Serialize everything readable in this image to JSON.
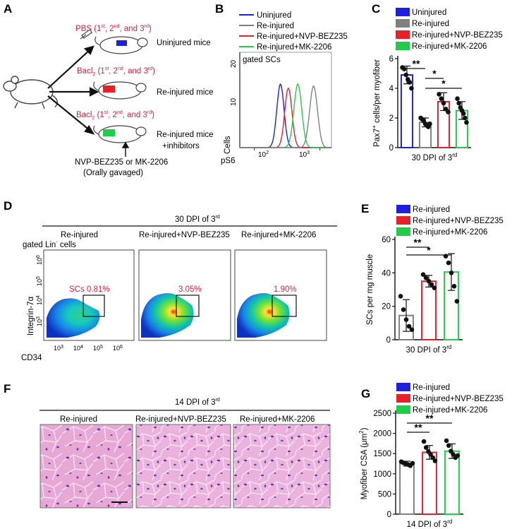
{
  "panel_letters": {
    "a": "A",
    "b": "B",
    "c": "C",
    "d": "D",
    "e": "E",
    "f": "F",
    "g": "G"
  },
  "colors": {
    "uninjured": "#1f1fe0",
    "reinjured": "#808080",
    "nvp": "#e8202a",
    "mk": "#22cc4a",
    "red_text": "#d8213b",
    "histo_bg": "#e9a9d8",
    "histo_nuclei": "#6b3aa3"
  },
  "panel_a": {
    "top_treat_1": "PBS (1",
    "top_sup_1": "st",
    "top_sep_1": ", 2",
    "top_sup_2": "nd",
    "top_sep_2": ", and 3",
    "top_sup_3": "rd",
    "top_end": ")",
    "mid_treat_1": "Bacl",
    "mid_sub": "2",
    "mid_treat_2": " (1",
    "mid_sup_1": "st",
    "mid_sep_1": ", 2",
    "mid_sup_2": "nd",
    "mid_sep_2": ", and 3",
    "mid_sup_3": "rd",
    "mid_end": ")",
    "bot_treat_1": "Bacl",
    "bot_sub": "2",
    "bot_treat_2": " (1",
    "bot_sup_1": "st",
    "bot_sep_1": ", 2",
    "bot_sup_2": "nd",
    "bot_sep_2": ", and 3",
    "bot_sup_3": "rd",
    "bot_end": ")",
    "label_uninjured": "Uninjured mice",
    "label_reinjured": "Re-injured mice",
    "label_inhib_1": "Re-injured mice",
    "label_inhib_2": "+inhibitors",
    "drug_line_1": "NVP-BEZ235 or MK-2206",
    "drug_line_2": "(Orally gavaged)"
  },
  "legend_4": [
    "Uninjured",
    "Re-injured",
    "Re-injured+NVP-BEZ235",
    "Re-injured+MK-2206"
  ],
  "legend_3": [
    "Re-injured",
    "Re-injured+NVP-BEZ235",
    "Re-injured+MK-2206"
  ],
  "panel_b": {
    "gate": "gated SCs",
    "ylabel": "Cells",
    "xlabel": "pS6",
    "yticks": [
      "20",
      "10",
      "0"
    ],
    "xticks": [
      "10",
      "10"
    ],
    "xtick_exp": [
      "2",
      "3"
    ]
  },
  "panel_d": {
    "header": "30 DPI of 3",
    "header_sup": "rd",
    "col_titles": [
      "Re-injured",
      "Re-injured+NVP-BEZ235",
      "Re-injured+MK-2206"
    ],
    "gate": "gated Lin",
    "gate_sup": "-",
    "gate_end": " cells",
    "ylabel": "Integrin-7α",
    "xlabel": "CD34",
    "gate_labels": [
      "SCs 0.81%",
      "3.05%",
      "1.90%"
    ],
    "tick_base": "10",
    "yexp": [
      "6",
      "5",
      "4",
      "3"
    ],
    "xexp": [
      "3",
      "4",
      "5",
      "6"
    ]
  },
  "panel_f": {
    "header": "14 DPI of 3",
    "header_sup": "rd",
    "col_titles": [
      "Re-injured",
      "Re-injured+NVP-BEZ235",
      "Re-injured+MK-2206"
    ]
  },
  "chart_data": [
    {
      "panel": "B",
      "type": "line",
      "title": "gated SCs",
      "xlabel": "pS6",
      "ylabel": "Cells",
      "x_scale": "log",
      "xlim": [
        60,
        1500
      ],
      "ylim": [
        0,
        24
      ],
      "series": [
        {
          "name": "Uninjured",
          "peak_x": 250,
          "peak_y": 16,
          "width": 0.055
        },
        {
          "name": "Re-injured+NVP-BEZ235",
          "peak_x": 330,
          "peak_y": 15,
          "width": 0.055
        },
        {
          "name": "Re-injured+MK-2206",
          "peak_x": 460,
          "peak_y": 16,
          "width": 0.06
        },
        {
          "name": "Re-injured",
          "peak_x": 800,
          "peak_y": 15.5,
          "width": 0.06
        }
      ]
    },
    {
      "panel": "C",
      "type": "bar",
      "title": "",
      "ylabel": "Pax7+ cells/per myofiber",
      "xlabel": "30 DPI of 3rd",
      "xlabel_base": "30 DPI of 3",
      "xlabel_sup": "rd",
      "ylabel_base": "Pax7",
      "ylabel_sup": "+",
      "ylabel_end": " cells/per myofiber",
      "ylim": [
        0,
        6
      ],
      "yticks": [
        0,
        2,
        4,
        6
      ],
      "categories": [
        "Uninjured",
        "Re-injured",
        "Re-injured+NVP-BEZ235",
        "Re-injured+MK-2206"
      ],
      "values": [
        4.9,
        1.7,
        3.1,
        2.5
      ],
      "errors": [
        0.6,
        0.3,
        0.6,
        0.6
      ],
      "points": [
        [
          5.4,
          5.3,
          4.9,
          4.6,
          4.4,
          4.0
        ],
        [
          2.0,
          1.9,
          1.8,
          1.6,
          1.5,
          1.4,
          1.6
        ],
        [
          3.6,
          3.3,
          3.0,
          2.6,
          2.4
        ],
        [
          3.3,
          3.0,
          2.7,
          2.5,
          2.3,
          2.0,
          1.7
        ]
      ],
      "significance": [
        {
          "from": 0,
          "to": 1,
          "label": "**"
        },
        {
          "from": 1,
          "to": 2,
          "label": "*"
        },
        {
          "from": 1,
          "to": 3,
          "label": "*"
        }
      ]
    },
    {
      "panel": "E",
      "type": "bar",
      "ylabel": "SCs per mg muscle",
      "xlabel": "30 DPI of 3rd",
      "xlabel_base": "30 DPI of 3",
      "xlabel_sup": "rd",
      "ylim": [
        0,
        60
      ],
      "yticks": [
        0,
        20,
        40,
        60
      ],
      "categories": [
        "Re-injured",
        "Re-injured+NVP-BEZ235",
        "Re-injured+MK-2206"
      ],
      "values": [
        14.5,
        35,
        40.5
      ],
      "errors": [
        9.5,
        3.5,
        11
      ],
      "points": [
        [
          26,
          18,
          12,
          8,
          6
        ],
        [
          39,
          37,
          35,
          33,
          31
        ],
        [
          50,
          46,
          40,
          32,
          23
        ]
      ],
      "significance": [
        {
          "from": 0,
          "to": 1,
          "label": "**"
        },
        {
          "from": 0,
          "to": 2,
          "label": "*"
        }
      ]
    },
    {
      "panel": "G",
      "type": "bar",
      "ylabel": "Myofiber CSA (μm²)",
      "xlabel": "14 DPI of 3rd",
      "ylabel_base": "Myofiber CSA (μm",
      "ylabel_sup": "2",
      "ylabel_end": ")",
      "xlabel_base": "14 DPI of 3",
      "xlabel_sup": "rd",
      "ylim": [
        0,
        2500
      ],
      "yticks": [
        0,
        500,
        1000,
        1500,
        2000,
        2500
      ],
      "categories": [
        "Re-injured",
        "Re-injured+NVP-BEZ235",
        "Re-injured+MK-2206"
      ],
      "values": [
        1250,
        1530,
        1560
      ],
      "errors": [
        60,
        170,
        180
      ],
      "points": [
        [
          1300,
          1270,
          1250,
          1230,
          1200,
          1260
        ],
        [
          1800,
          1650,
          1550,
          1480,
          1400,
          1320
        ],
        [
          1820,
          1700,
          1560,
          1480,
          1400,
          1450
        ]
      ],
      "significance": [
        {
          "from": 0,
          "to": 1,
          "label": "**"
        },
        {
          "from": 0,
          "to": 2,
          "label": "**"
        }
      ]
    }
  ]
}
